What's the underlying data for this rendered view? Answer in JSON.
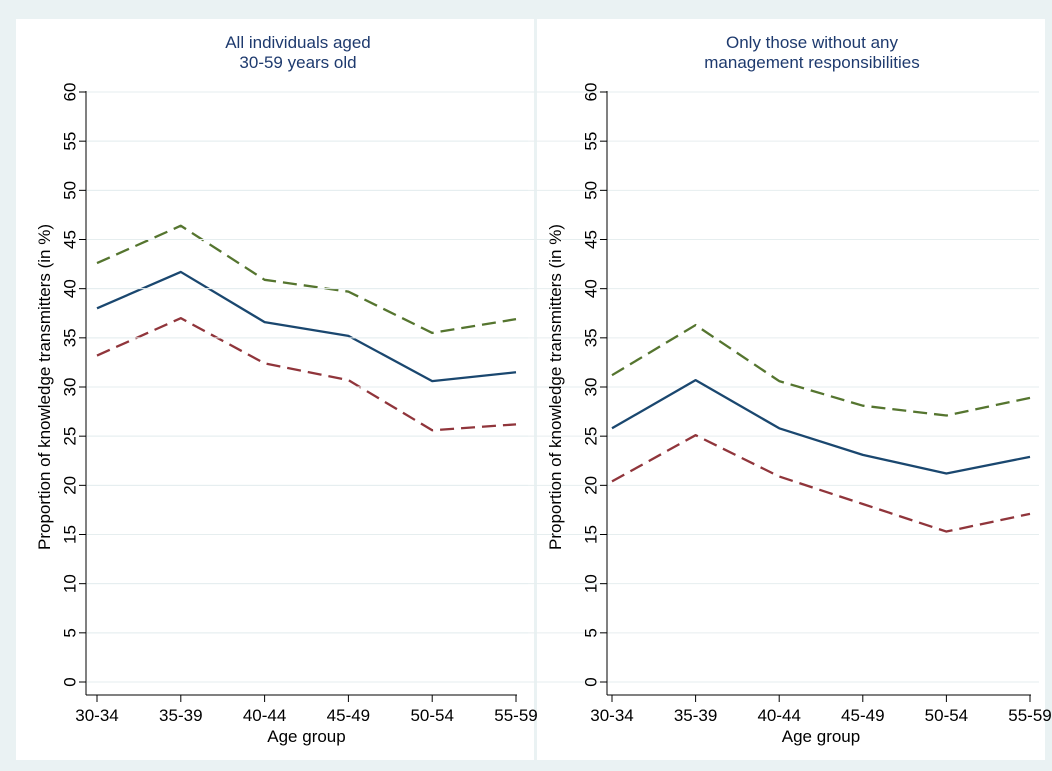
{
  "chart_data": [
    {
      "type": "line",
      "title": "All individuals aged\n30-59 years old",
      "xlabel": "Age group",
      "ylabel": "Proportion of knowledge transmitters (in %)",
      "ylim": [
        0,
        60
      ],
      "yticks": [
        0,
        5,
        10,
        15,
        20,
        25,
        30,
        35,
        40,
        45,
        50,
        55,
        60
      ],
      "categories": [
        "30-34",
        "35-39",
        "40-44",
        "45-49",
        "50-54",
        "55-59"
      ],
      "grid": true,
      "series": [
        {
          "color": "#1a476f",
          "dash": "solid",
          "values": [
            38.0,
            41.7,
            36.6,
            35.2,
            30.6,
            31.5
          ]
        },
        {
          "color": "#55752f",
          "dash": "dashed",
          "values": [
            42.6,
            46.4,
            40.9,
            39.7,
            35.5,
            36.9
          ]
        },
        {
          "color": "#90353b",
          "dash": "dashed",
          "values": [
            33.2,
            37.0,
            32.4,
            30.7,
            25.6,
            26.2
          ]
        }
      ]
    },
    {
      "type": "line",
      "title": "Only those without any\nmanagement responsibilities",
      "xlabel": "Age group",
      "ylabel": "Proportion of knowledge transmitters (in %)",
      "ylim": [
        0,
        60
      ],
      "yticks": [
        0,
        5,
        10,
        15,
        20,
        25,
        30,
        35,
        40,
        45,
        50,
        55,
        60
      ],
      "categories": [
        "30-34",
        "35-39",
        "40-44",
        "45-49",
        "50-54",
        "55-59"
      ],
      "grid": true,
      "series": [
        {
          "color": "#1a476f",
          "dash": "solid",
          "values": [
            25.8,
            30.7,
            25.8,
            23.1,
            21.2,
            22.9
          ]
        },
        {
          "color": "#55752f",
          "dash": "dashed",
          "values": [
            31.2,
            36.3,
            30.6,
            28.1,
            27.1,
            28.9
          ]
        },
        {
          "color": "#90353b",
          "dash": "dashed",
          "values": [
            20.4,
            25.1,
            20.9,
            18.1,
            15.3,
            17.1
          ]
        }
      ]
    }
  ]
}
